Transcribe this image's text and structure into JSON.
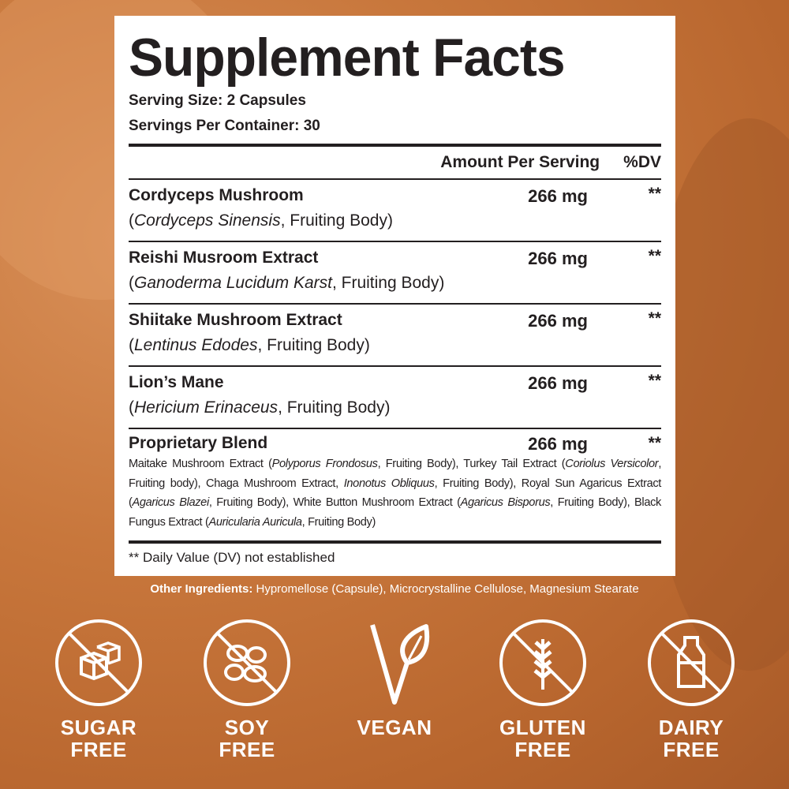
{
  "title": "Supplement Facts",
  "serving_size": "Serving Size: 2 Capsules",
  "servings_per_container": "Servings Per Container: 30",
  "header": {
    "amount": "Amount Per Serving",
    "dv": "%DV"
  },
  "ingredients": [
    {
      "name": "Cordyceps Mushroom",
      "open": "(",
      "species": "Cordyceps Sinensis",
      "part": ", Fruiting Body)",
      "amount": "266 mg",
      "dv": "**"
    },
    {
      "name": "Reishi Musroom Extract",
      "open": "(",
      "species": "Ganoderma Lucidum Karst",
      "part": ", Fruiting Body)",
      "amount": "266 mg",
      "dv": "**"
    },
    {
      "name": "Shiitake Mushroom Extract",
      "open": "(",
      "species": "Lentinus Edodes",
      "part": ", Fruiting Body)",
      "amount": "266 mg",
      "dv": "**"
    },
    {
      "name": "Lion’s Mane",
      "open": "(",
      "species": "Hericium Erinaceus",
      "part": ", Fruiting Body)",
      "amount": "266 mg",
      "dv": "**"
    }
  ],
  "blend": {
    "name": "Proprietary Blend",
    "amount": "266 mg",
    "dv": "**",
    "segments": [
      "Maitake Mushroom Extract (",
      "Polyporus Frondosus",
      ", Fruiting Body), Turkey Tail Extract (",
      "Coriolus Versicolor",
      ", Fruiting body), Chaga Mushroom Extract, ",
      "Inonotus Obliquus",
      ", Fruiting Body), Royal Sun Agaricus Extract (",
      "Agaricus Blazei",
      ", Fruiting Body), White Button Mushroom Extract (",
      "Agaricus Bisporus",
      ", Fruiting Body), Black Fungus Extract (",
      "Auricularia Auricula",
      ", Fruiting Body)"
    ]
  },
  "footnote": "** Daily Value (DV) not established",
  "other_ingredients": {
    "label": "Other Ingredients:",
    "text": " Hypromellose (Capsule), Microcrystalline Cellulose, Magnesium Stearate"
  },
  "badges": [
    {
      "icon": "sugar-cubes-icon",
      "line1": "SUGAR",
      "line2": "FREE"
    },
    {
      "icon": "soybeans-icon",
      "line1": "SOY",
      "line2": "FREE"
    },
    {
      "icon": "leaf-v-icon",
      "line1": "VEGAN",
      "line2": ""
    },
    {
      "icon": "wheat-icon",
      "line1": "GLUTEN",
      "line2": "FREE"
    },
    {
      "icon": "milk-bottle-icon",
      "line1": "DAIRY",
      "line2": "FREE"
    }
  ],
  "colors": {
    "background": "#c8773c",
    "label": "#ffffff",
    "text": "#231f20",
    "badge": "#ffffff"
  }
}
